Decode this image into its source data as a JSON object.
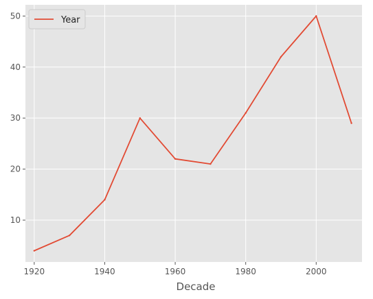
{
  "chart_data": {
    "type": "line",
    "title": "",
    "xlabel": "Decade",
    "ylabel": "",
    "x": [
      1920,
      1930,
      1940,
      1950,
      1960,
      1970,
      1980,
      1990,
      2000,
      2010
    ],
    "series": [
      {
        "name": "Year",
        "values": [
          4,
          7,
          14,
          30,
          22,
          21,
          31,
          42,
          50,
          29
        ],
        "color": "#E24A33"
      }
    ],
    "xlim": [
      1917.5,
      2013.0
    ],
    "ylim": [
      1.8,
      52.2
    ],
    "xticks": [
      1920,
      1940,
      1960,
      1980,
      2000
    ],
    "yticks": [
      10,
      20,
      30,
      40,
      50
    ],
    "grid": true,
    "legend": "top-left",
    "background": "#E5E5E5",
    "grid_color": "#FFFFFF"
  }
}
